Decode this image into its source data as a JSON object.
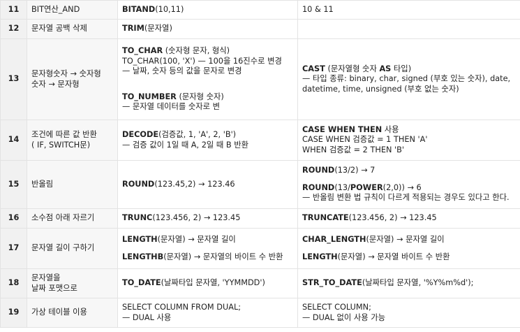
{
  "rows": [
    {
      "num": "11",
      "task": [
        "BIT연산_AND"
      ],
      "oracle": [
        {
          "bold": "BITAND",
          "rest": "(10,11)"
        }
      ],
      "mysql": [
        {
          "bold": "",
          "rest": "10 & 11"
        }
      ]
    },
    {
      "num": "12",
      "task": [
        "문자열 공백 삭제"
      ],
      "oracle": [
        {
          "bold": "TRIM",
          "rest": "(문자열)"
        }
      ],
      "mysql": []
    },
    {
      "num": "13",
      "task": [
        "문자형숫자 → 숫자형",
        "숫자 → 문자형"
      ],
      "oracle": [
        {
          "bold": "TO_CHAR",
          "rest": " (숫자형 문자, 형식)"
        },
        {
          "bold": "",
          "rest": "TO_CHAR(100, 'X') — 100을 16진수로 변경"
        },
        {
          "bold": "",
          "rest": "— 날짜, 숫자 등의 값을 문자로 변경"
        },
        {
          "bold": "TO_NUMBER",
          "rest": " (문자형 숫자)",
          "gap": "lg"
        },
        {
          "bold": "",
          "rest": "— 문자열 데이터를 숫자로 변"
        }
      ],
      "mysql": [
        {
          "bold": "CAST",
          "rest": " (문자열형 숫자 ",
          "bold2": "AS",
          "rest2": " 타입)"
        },
        {
          "bold": "",
          "rest": "— 타입 종류: binary, char, signed (부호 있는 숫자), date,"
        },
        {
          "bold": "",
          "rest": "datetime, time, unsigned (부호 없는 숫자)"
        }
      ]
    },
    {
      "num": "14",
      "task": [
        "조건에 따른 값 반환",
        "( IF, SWITCH문)"
      ],
      "oracle": [
        {
          "bold": "DECODE",
          "rest": "(검증값, 1, 'A', 2, 'B')"
        },
        {
          "bold": "",
          "rest": "— 검증 값이 1일 때 A, 2일 때 B 반환"
        }
      ],
      "mysql": [
        {
          "bold": "CASE WHEN THEN",
          "rest": " 사용"
        },
        {
          "bold": "",
          "rest": "CASE WHEN 검증값 = 1 THEN 'A'"
        },
        {
          "bold": "",
          "rest": "WHEN 검증값 = 2 THEN 'B'"
        }
      ]
    },
    {
      "num": "15",
      "task": [
        "반올림"
      ],
      "oracle": [
        {
          "bold": "ROUND",
          "rest": "(123.45,2) → 123.46"
        }
      ],
      "mysql": [
        {
          "bold": "ROUND",
          "rest": "(13/2) → 7"
        },
        {
          "bold": "ROUND",
          "rest": "(13/",
          "bold2": "POWER",
          "rest2": "(2,0)) → 6",
          "gap": "sm"
        },
        {
          "bold": "",
          "rest": "— 반올림 변환 법 규칙이 다르게 적용되는 경우도 있다고 한다."
        }
      ]
    },
    {
      "num": "16",
      "task": [
        "소수점 아래 자르기"
      ],
      "oracle": [
        {
          "bold": "TRUNC",
          "rest": "(123.456, 2) → 123.45"
        }
      ],
      "mysql": [
        {
          "bold": "TRUNCATE",
          "rest": "(123.456, 2) → 123.45"
        }
      ]
    },
    {
      "num": "17",
      "task": [
        "문자열 길이 구하기"
      ],
      "oracle": [
        {
          "bold": "LENGTH",
          "rest": "(문자열) → 문자열 길이"
        },
        {
          "bold": "LENGTHB",
          "rest": "(문자열) → 문자열의 바이트 수 반환",
          "gap": "sm"
        }
      ],
      "mysql": [
        {
          "bold": "CHAR_LENGTH",
          "rest": "(문자열) → 문자열 길이"
        },
        {
          "bold": "LENGTH",
          "rest": "(문자열) → 문자열 바이트 수 반환",
          "gap": "sm"
        }
      ]
    },
    {
      "num": "18",
      "task": [
        "문자열을",
        "날짜 포맷으로"
      ],
      "oracle": [
        {
          "bold": "TO_DATE",
          "rest": "(날짜타입 문자열, 'YYMMDD')"
        }
      ],
      "mysql": [
        {
          "bold": "STR_TO_DATE",
          "rest": "(날짜타입 문자열, '%Y%m%d');"
        }
      ]
    },
    {
      "num": "19",
      "task": [
        "가상 테이블 이용"
      ],
      "oracle": [
        {
          "bold": "",
          "rest": "SELECT COLUMN FROM DUAL;"
        },
        {
          "bold": "",
          "rest": "— DUAL 사용"
        }
      ],
      "mysql": [
        {
          "bold": "",
          "rest": "SELECT COLUMN;"
        },
        {
          "bold": "",
          "rest": "— DUAL 없이 사용 가능"
        }
      ]
    }
  ]
}
